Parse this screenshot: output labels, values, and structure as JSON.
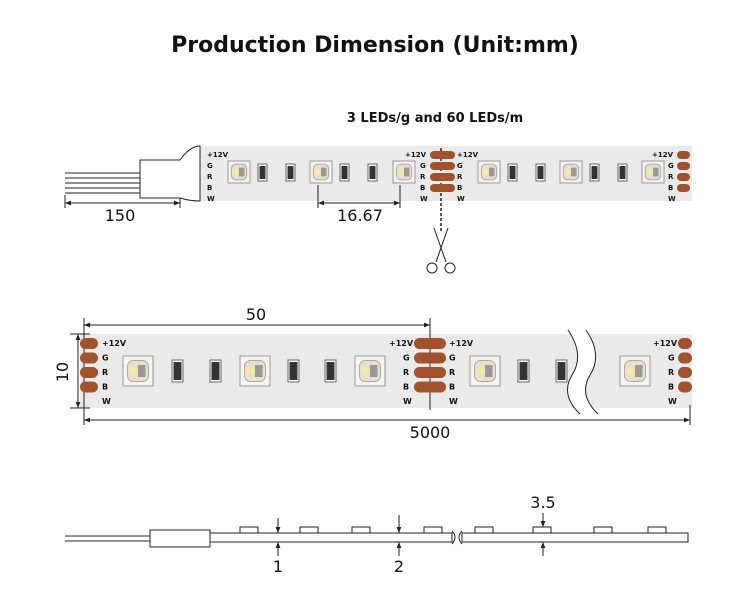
{
  "header": {
    "title": "Production Dimension (Unit:mm)"
  },
  "strip_top": {
    "caption": "3 LEDs/g and 60 LEDs/m",
    "pins": [
      "+12V",
      "G",
      "R",
      "B",
      "W"
    ],
    "dimensions": [
      "150",
      "16.67"
    ]
  },
  "strip_detail": {
    "pins": [
      "+12V",
      "G",
      "R",
      "B",
      "W"
    ],
    "dimensions": [
      "50",
      "10",
      "5000"
    ]
  },
  "side_view": {
    "dimensions": [
      "1",
      "2",
      "3.5"
    ]
  }
}
